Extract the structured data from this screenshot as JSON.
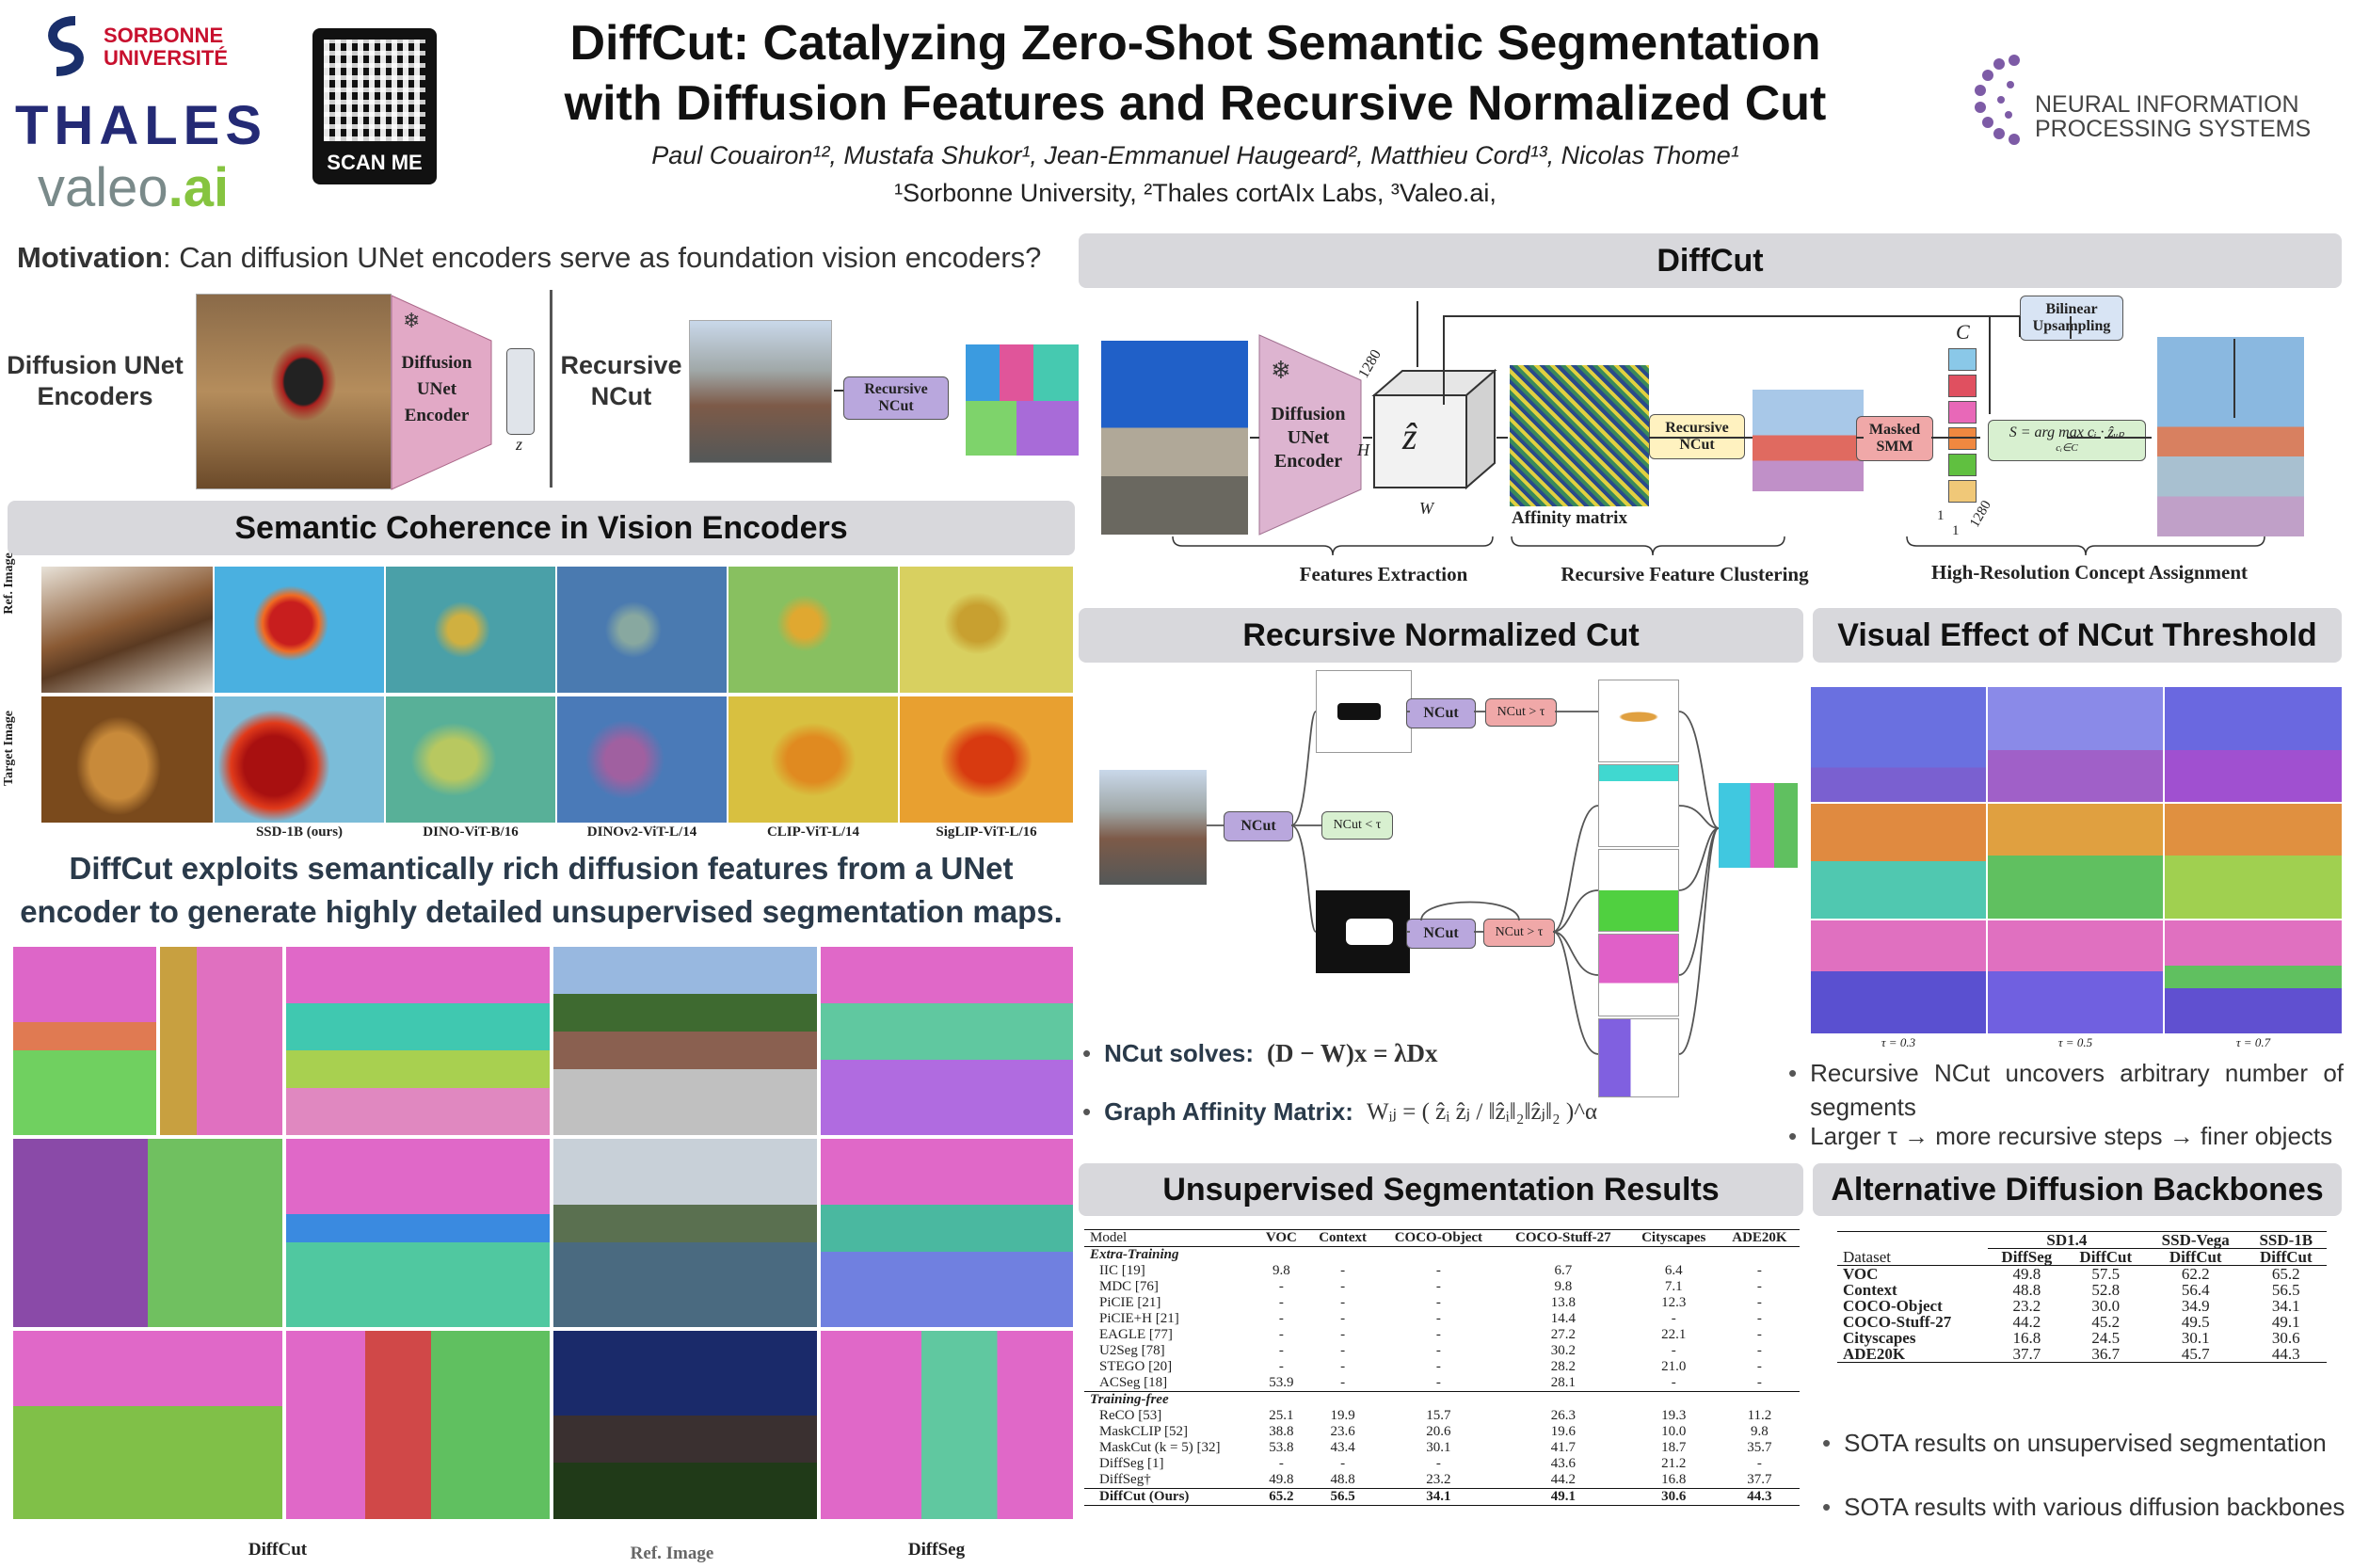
{
  "header": {
    "title_line1": "DiffCut: Catalyzing Zero-Shot Semantic Segmentation",
    "title_line2": "with Diffusion Features and Recursive Normalized Cut",
    "authors": "Paul Couairon¹², Mustafa Shukor¹, Jean-Emmanuel Haugeard², Matthieu Cord¹³, Nicolas Thome¹",
    "affiliations": "¹Sorbonne University, ²Thales cortAIx Labs, ³Valeo.ai,",
    "logo_sorbonne_1": "SORBONNE",
    "logo_sorbonne_2": "UNIVERSITÉ",
    "logo_thales": "THALES",
    "logo_valeo": "valeo",
    "logo_valeo_ai": ".ai",
    "qr_label": "SCAN ME",
    "neurips_1": "NEURAL INFORMATION",
    "neurips_2": "PROCESSING SYSTEMS"
  },
  "motivation": {
    "label": "Motivation",
    "text": ": Can diffusion UNet encoders serve as foundation vision encoders?",
    "left_label_1": "Diffusion UNet",
    "left_label_2": "Encoders",
    "encoder_1": "Diffusion",
    "encoder_2": "UNet",
    "encoder_3": "Encoder",
    "z": "z",
    "right_label_1": "Recursive",
    "right_label_2": "NCut",
    "ncut_box_1": "Recursive",
    "ncut_box_2": "NCut"
  },
  "coherence": {
    "heading": "Semantic Coherence in Vision Encoders",
    "row_ref": "Ref. Image",
    "row_target": "Target Image",
    "captions": [
      "SSD-1B (ours)",
      "DINO-ViT-B/16",
      "DINOv2-ViT-L/14",
      "CLIP-ViT-L/14",
      "SigLIP-ViT-L/16"
    ]
  },
  "statement": {
    "line1": "DiffCut exploits semantically rich diffusion features from a UNet",
    "line2": "encoder to generate highly detailed unsupervised segmentation maps."
  },
  "gallery": {
    "caption_left": "DiffCut",
    "caption_mid": "Ref. Image",
    "caption_right": "DiffSeg"
  },
  "diffcut": {
    "heading": "DiffCut",
    "encoder_1": "Diffusion",
    "encoder_2": "UNet",
    "encoder_3": "Encoder",
    "dim_1280": "1280",
    "dim_h": "H",
    "dim_w": "W",
    "zhat": "ẑ",
    "affinity": "Affinity matrix",
    "rncut_1": "Recursive",
    "rncut_2": "NCut",
    "masked_1": "Masked",
    "masked_2": "SMM",
    "bilinear_1": "Bilinear",
    "bilinear_2": "Upsampling",
    "argmax": "S = arg max cᵢ · ẑᵤₚ",
    "argmax_sub": "cᵢ∈C",
    "set_c": "C",
    "dim_1a": "1",
    "dim_1b": "1",
    "dim_1280b": "1280",
    "stage_1": "Features Extraction",
    "stage_2": "Recursive Feature Clustering",
    "stage_3": "High-Resolution Concept Assignment"
  },
  "rncut": {
    "heading": "Recursive Normalized Cut",
    "ncut": "NCut",
    "gt_tau": "NCut > τ",
    "lt_tau": "NCut < τ",
    "bullet1_label": "NCut  solves:",
    "bullet1_eq": "(D − W)x = λDx",
    "bullet2_label": "Graph Affinity Matrix:",
    "bullet2_eq": "Wᵢⱼ = ( ẑᵢ ẑⱼ / ‖ẑᵢ‖₂‖ẑⱼ‖₂ )^α"
  },
  "threshold": {
    "heading": "Visual Effect of NCut Threshold",
    "taus": [
      "τ = 0.3",
      "τ = 0.5",
      "τ = 0.7"
    ],
    "bullet1": "Recursive  NCut  uncovers  arbitrary  number  of segments",
    "bullet2": "Larger  τ → more recursive steps → finer objects"
  },
  "results": {
    "heading": "Unsupervised Segmentation Results",
    "columns": [
      "Model",
      "VOC",
      "Context",
      "COCO-Object",
      "COCO-Stuff-27",
      "Cityscapes",
      "ADE20K"
    ],
    "groups": [
      {
        "name": "Extra-Training",
        "rows": [
          [
            "IIC [19]",
            "9.8",
            "-",
            "-",
            "6.7",
            "6.4",
            "-"
          ],
          [
            "MDC [76]",
            "-",
            "-",
            "-",
            "9.8",
            "7.1",
            "-"
          ],
          [
            "PiCIE [21]",
            "-",
            "-",
            "-",
            "13.8",
            "12.3",
            "-"
          ],
          [
            "PiCIE+H [21]",
            "-",
            "-",
            "-",
            "14.4",
            "-",
            "-"
          ],
          [
            "EAGLE [77]",
            "-",
            "-",
            "-",
            "27.2",
            "22.1",
            "-"
          ],
          [
            "U2Seg [78]",
            "-",
            "-",
            "-",
            "30.2",
            "-",
            "-"
          ],
          [
            "STEGO [20]",
            "-",
            "-",
            "-",
            "28.2",
            "21.0",
            "-"
          ],
          [
            "ACSeg [18]",
            "53.9",
            "-",
            "-",
            "28.1",
            "-",
            "-"
          ]
        ]
      },
      {
        "name": "Training-free",
        "rows": [
          [
            "ReCO [53]",
            "25.1",
            "19.9",
            "15.7",
            "26.3",
            "19.3",
            "11.2"
          ],
          [
            "MaskCLIP [52]",
            "38.8",
            "23.6",
            "20.6",
            "19.6",
            "10.0",
            "9.8"
          ],
          [
            "MaskCut (k = 5) [32]",
            "53.8",
            "43.4",
            "30.1",
            "41.7",
            "18.7",
            "35.7"
          ],
          [
            "DiffSeg [1]",
            "-",
            "-",
            "-",
            "43.6",
            "21.2",
            "-"
          ],
          [
            "DiffSeg†",
            "49.8",
            "48.8",
            "23.2",
            "44.2",
            "16.8",
            "37.7"
          ]
        ]
      }
    ],
    "final": [
      "DiffCut (Ours)",
      "65.2",
      "56.5",
      "34.1",
      "49.1",
      "30.6",
      "44.3"
    ]
  },
  "backbones": {
    "heading": "Alternative Diffusion Backbones",
    "col_groups": [
      "SD1.4",
      "SSD-Vega",
      "SSD-1B"
    ],
    "subcols": [
      "Dataset",
      "DiffSeg",
      "DiffCut",
      "DiffCut",
      "DiffCut"
    ],
    "rows": [
      [
        "VOC",
        "49.8",
        "57.5",
        "62.2",
        "65.2"
      ],
      [
        "Context",
        "48.8",
        "52.8",
        "56.4",
        "56.5"
      ],
      [
        "COCO-Object",
        "23.2",
        "30.0",
        "34.9",
        "34.1"
      ],
      [
        "COCO-Stuff-27",
        "44.2",
        "45.2",
        "49.5",
        "49.1"
      ],
      [
        "Cityscapes",
        "16.8",
        "24.5",
        "30.1",
        "30.6"
      ],
      [
        "ADE20K",
        "37.7",
        "36.7",
        "45.7",
        "44.3"
      ]
    ],
    "bullet1": "SOTA results on unsupervised segmentation",
    "bullet2": "SOTA results with various diffusion backbones"
  }
}
